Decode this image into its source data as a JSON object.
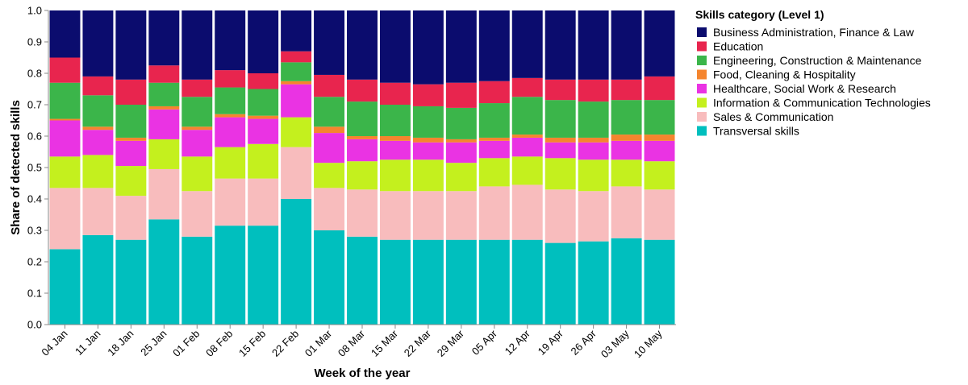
{
  "chart_data": {
    "type": "bar",
    "stacked": true,
    "xlabel": "Week of the year",
    "ylabel": "Share of detected skills",
    "ylim": [
      0,
      1
    ],
    "yticks": [
      "0.0",
      "0.1",
      "0.2",
      "0.3",
      "0.4",
      "0.5",
      "0.6",
      "0.7",
      "0.8",
      "0.9",
      "1.0"
    ],
    "grid": false,
    "legend": {
      "title": "Skills category (Level 1)",
      "position": "right"
    },
    "categories": [
      "04 Jan",
      "11 Jan",
      "18 Jan",
      "25 Jan",
      "01 Feb",
      "08 Feb",
      "15 Feb",
      "22 Feb",
      "01 Mar",
      "08 Mar",
      "15 Mar",
      "22 Mar",
      "29 Mar",
      "05 Apr",
      "12 Apr",
      "19 Apr",
      "26 Apr",
      "03 May",
      "10 May"
    ],
    "series": [
      {
        "name": "Business Administration, Finance & Law",
        "color": "#0b0c6e",
        "values": [
          0.15,
          0.21,
          0.22,
          0.17,
          0.22,
          0.19,
          0.2,
          0.13,
          0.2,
          0.21,
          0.23,
          0.24,
          0.23,
          0.22,
          0.21,
          0.22,
          0.22,
          0.22,
          0.21
        ]
      },
      {
        "name": "Education",
        "color": "#e8254e",
        "values": [
          0.08,
          0.06,
          0.08,
          0.055,
          0.055,
          0.055,
          0.05,
          0.035,
          0.07,
          0.07,
          0.07,
          0.07,
          0.08,
          0.07,
          0.06,
          0.065,
          0.07,
          0.065,
          0.075
        ]
      },
      {
        "name": "Engineering, Construction & Maintenance",
        "color": "#3bb54a",
        "values": [
          0.115,
          0.1,
          0.105,
          0.075,
          0.095,
          0.085,
          0.085,
          0.06,
          0.095,
          0.11,
          0.1,
          0.1,
          0.1,
          0.11,
          0.12,
          0.12,
          0.115,
          0.11,
          0.11
        ]
      },
      {
        "name": "Food, Cleaning & Hospitality",
        "color": "#f5852e",
        "values": [
          0.005,
          0.01,
          0.01,
          0.01,
          0.01,
          0.01,
          0.01,
          0.01,
          0.02,
          0.01,
          0.015,
          0.015,
          0.01,
          0.01,
          0.01,
          0.015,
          0.015,
          0.02,
          0.02
        ]
      },
      {
        "name": "Healthcare, Social Work & Research",
        "color": "#ea33e3",
        "values": [
          0.115,
          0.08,
          0.08,
          0.095,
          0.085,
          0.095,
          0.08,
          0.105,
          0.095,
          0.07,
          0.06,
          0.055,
          0.065,
          0.055,
          0.06,
          0.05,
          0.055,
          0.06,
          0.065
        ]
      },
      {
        "name": "Information & Communication Technologies",
        "color": "#c4f01e",
        "values": [
          0.1,
          0.105,
          0.095,
          0.095,
          0.11,
          0.1,
          0.11,
          0.095,
          0.08,
          0.09,
          0.1,
          0.1,
          0.09,
          0.09,
          0.09,
          0.1,
          0.1,
          0.085,
          0.09
        ]
      },
      {
        "name": "Sales & Communication",
        "color": "#f8bcbd",
        "values": [
          0.195,
          0.15,
          0.14,
          0.16,
          0.145,
          0.15,
          0.15,
          0.165,
          0.135,
          0.15,
          0.155,
          0.155,
          0.155,
          0.17,
          0.175,
          0.17,
          0.16,
          0.165,
          0.16
        ]
      },
      {
        "name": "Transversal skills",
        "color": "#00bfbe",
        "values": [
          0.24,
          0.285,
          0.27,
          0.335,
          0.28,
          0.315,
          0.315,
          0.4,
          0.3,
          0.28,
          0.27,
          0.27,
          0.27,
          0.27,
          0.27,
          0.26,
          0.265,
          0.275,
          0.27
        ]
      }
    ]
  }
}
